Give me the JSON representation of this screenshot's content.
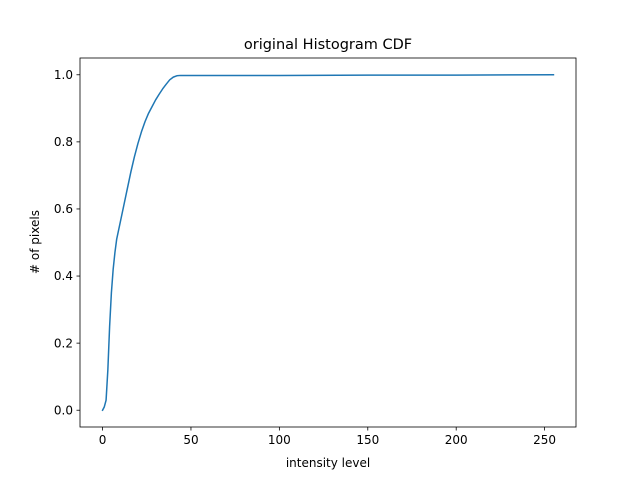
{
  "chart_data": {
    "type": "line",
    "title": "original Histogram CDF",
    "xlabel": "intensity level",
    "ylabel": "# of pixels",
    "xlim": [
      -12.75,
      267.75
    ],
    "ylim": [
      -0.05,
      1.05
    ],
    "xticks": [
      0,
      50,
      100,
      150,
      200,
      250
    ],
    "yticks": [
      0.0,
      0.2,
      0.4,
      0.6,
      0.8,
      1.0
    ],
    "xtick_labels": [
      "0",
      "50",
      "100",
      "150",
      "200",
      "250"
    ],
    "ytick_labels": [
      "0.0",
      "0.2",
      "0.4",
      "0.6",
      "0.8",
      "1.0"
    ],
    "grid": false,
    "legend": "none",
    "series": [
      {
        "color": "#1f77b4",
        "x": [
          0,
          1,
          2,
          3,
          4,
          5,
          6,
          7,
          8,
          10,
          12,
          14,
          16,
          18,
          20,
          22,
          24,
          26,
          28,
          30,
          32,
          34,
          36,
          38,
          40,
          42,
          44,
          46,
          48,
          50,
          60,
          80,
          100,
          150,
          200,
          255
        ],
        "y": [
          0.0,
          0.01,
          0.03,
          0.12,
          0.25,
          0.35,
          0.42,
          0.47,
          0.51,
          0.56,
          0.61,
          0.66,
          0.71,
          0.755,
          0.795,
          0.83,
          0.86,
          0.885,
          0.905,
          0.925,
          0.942,
          0.958,
          0.972,
          0.985,
          0.993,
          0.997,
          0.998,
          0.998,
          0.998,
          0.998,
          0.998,
          0.998,
          0.998,
          0.999,
          0.999,
          1.0
        ]
      }
    ]
  }
}
